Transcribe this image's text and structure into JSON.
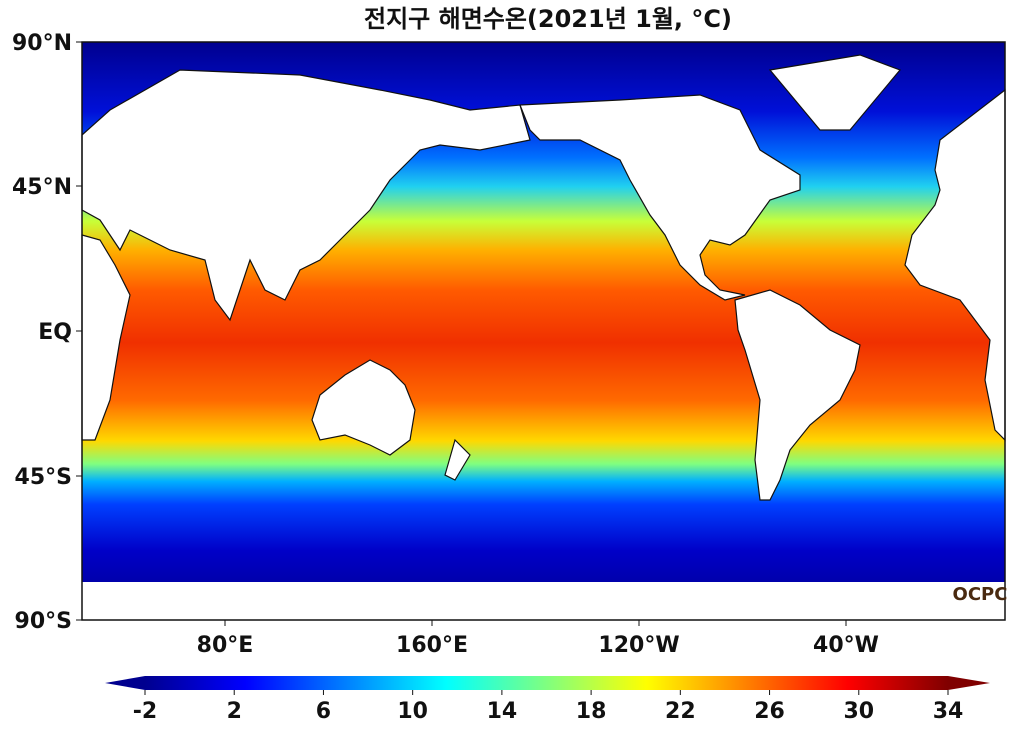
{
  "title": "전지구 해면수온(2021년 1월, °C)",
  "y_axis_labels": [
    "90°N",
    "45°N",
    "EQ",
    "45°S",
    "90°S"
  ],
  "x_axis_labels": [
    "80°E",
    "160°E",
    "120°W",
    "40°W"
  ],
  "colorbar": {
    "range": [
      -2,
      34
    ],
    "ticks": [
      -2,
      2,
      6,
      10,
      14,
      18,
      22,
      26,
      30,
      34
    ]
  },
  "credit": "OCPC"
}
